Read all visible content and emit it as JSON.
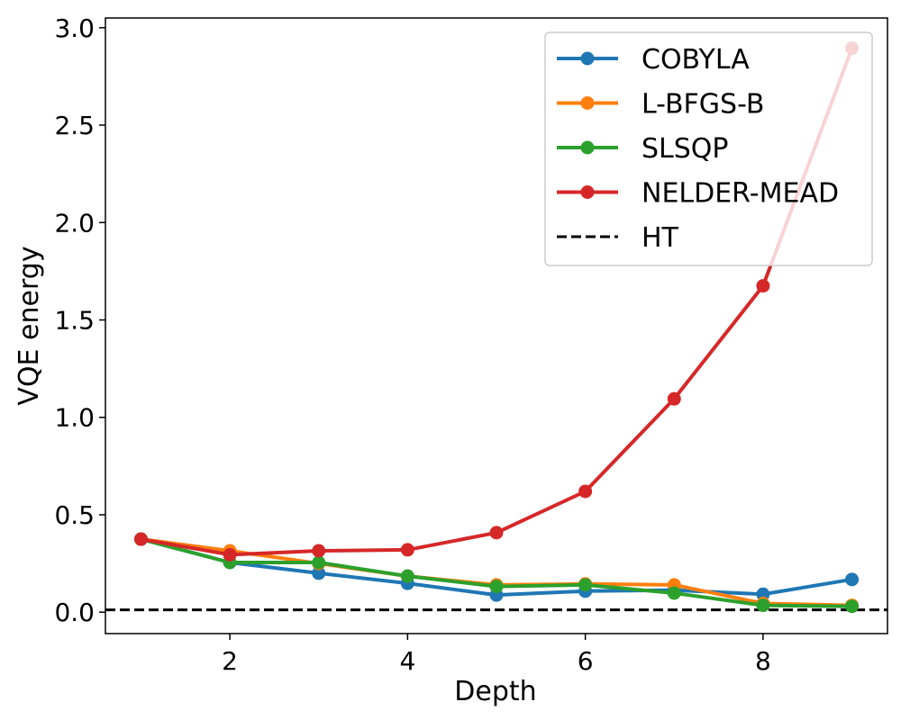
{
  "chart_data": {
    "type": "line",
    "xlabel": "Depth",
    "ylabel": "VQE energy",
    "xlim": [
      0.6,
      9.4
    ],
    "ylim": [
      -0.11,
      3.05
    ],
    "xticks": [
      2,
      4,
      6,
      8
    ],
    "yticks": [
      0.0,
      0.5,
      1.0,
      1.5,
      2.0,
      2.5,
      3.0
    ],
    "ytick_labels": [
      "0.0",
      "0.5",
      "1.0",
      "1.5",
      "2.0",
      "2.5",
      "3.0"
    ],
    "grid": false,
    "legend_position": "top-right",
    "x": [
      1,
      2,
      3,
      4,
      5,
      6,
      7,
      8,
      9
    ],
    "series": [
      {
        "name": "COBYLA",
        "color": "#1f77b4",
        "style": "solid-marker",
        "values": [
          0.375,
          0.255,
          0.2,
          0.148,
          0.088,
          0.108,
          0.113,
          0.092,
          0.168
        ]
      },
      {
        "name": "L-BFGS-B",
        "color": "#ff7f0e",
        "style": "solid-marker",
        "values": [
          0.375,
          0.315,
          0.25,
          0.185,
          0.14,
          0.145,
          0.14,
          0.045,
          0.035
        ]
      },
      {
        "name": "SLSQP",
        "color": "#2ca02c",
        "style": "solid-marker",
        "values": [
          0.375,
          0.255,
          0.255,
          0.185,
          0.132,
          0.14,
          0.098,
          0.035,
          0.03
        ]
      },
      {
        "name": "NELDER-MEAD",
        "color": "#d62728",
        "style": "solid-marker",
        "values": [
          0.375,
          0.295,
          0.315,
          0.32,
          0.408,
          0.62,
          1.095,
          1.675,
          2.895
        ]
      }
    ],
    "reference_lines": [
      {
        "name": "HT",
        "color": "#000000",
        "style": "dashed",
        "y": 0.012
      }
    ]
  }
}
